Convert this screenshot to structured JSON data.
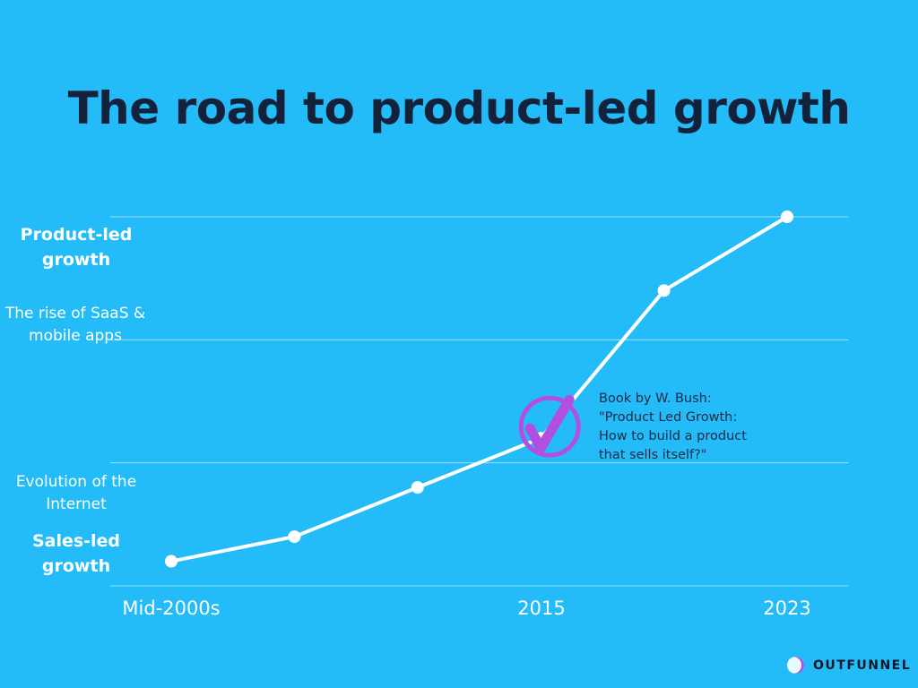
{
  "title": "The road to product-led growth",
  "chart_data": {
    "type": "line",
    "title": "The road to product-led growth",
    "x": [
      0,
      1,
      2,
      3,
      4,
      5
    ],
    "x_tick_labels": [
      {
        "index": 0,
        "label": "Mid-2000s"
      },
      {
        "index": 3,
        "label": "2015"
      },
      {
        "index": 5,
        "label": "2023"
      }
    ],
    "values": [
      0.2,
      0.4,
      0.8,
      1.2,
      2.4,
      3.0
    ],
    "ylim": [
      0,
      3
    ],
    "gridlines": [
      0,
      1,
      2,
      3
    ],
    "y_labels": [
      {
        "text": "Sales-led growth",
        "bold": true
      },
      {
        "text": "Evolution of the Internet",
        "bold": false
      },
      {
        "text": "The rise of SaaS & mobile apps",
        "bold": false
      },
      {
        "text": "Product-led growth",
        "bold": true
      }
    ],
    "annotation": {
      "index": 3,
      "icon": "check-circle-icon",
      "color": "#b34fe0",
      "lines": [
        "Book by W. Bush:",
        "\"Product Led Growth:",
        "How to build a product",
        "that sells itself?\""
      ]
    }
  },
  "brand": "OUTFUNNEL"
}
